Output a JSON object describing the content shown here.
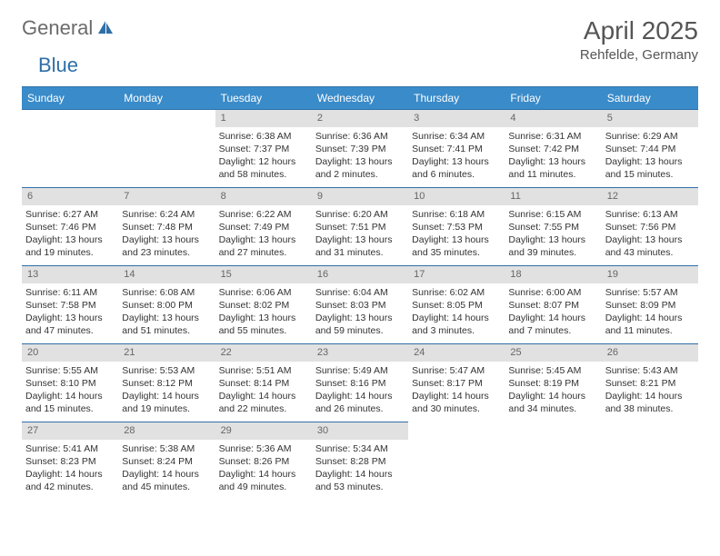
{
  "logo": {
    "text1": "General",
    "text2": "Blue"
  },
  "title": "April 2025",
  "location": "Rehfelde, Germany",
  "colors": {
    "header_bg": "#3a8bc9",
    "header_border": "#2f6fa8",
    "daynum_bg": "#e1e1e1",
    "daynum_color": "#666666",
    "text": "#333333",
    "logo_gray": "#6b6b6b",
    "logo_blue": "#2f6fa8"
  },
  "weekdays": [
    "Sunday",
    "Monday",
    "Tuesday",
    "Wednesday",
    "Thursday",
    "Friday",
    "Saturday"
  ],
  "leading_empty": 2,
  "days": [
    {
      "n": "1",
      "sunrise": "Sunrise: 6:38 AM",
      "sunset": "Sunset: 7:37 PM",
      "daylight": "Daylight: 12 hours and 58 minutes."
    },
    {
      "n": "2",
      "sunrise": "Sunrise: 6:36 AM",
      "sunset": "Sunset: 7:39 PM",
      "daylight": "Daylight: 13 hours and 2 minutes."
    },
    {
      "n": "3",
      "sunrise": "Sunrise: 6:34 AM",
      "sunset": "Sunset: 7:41 PM",
      "daylight": "Daylight: 13 hours and 6 minutes."
    },
    {
      "n": "4",
      "sunrise": "Sunrise: 6:31 AM",
      "sunset": "Sunset: 7:42 PM",
      "daylight": "Daylight: 13 hours and 11 minutes."
    },
    {
      "n": "5",
      "sunrise": "Sunrise: 6:29 AM",
      "sunset": "Sunset: 7:44 PM",
      "daylight": "Daylight: 13 hours and 15 minutes."
    },
    {
      "n": "6",
      "sunrise": "Sunrise: 6:27 AM",
      "sunset": "Sunset: 7:46 PM",
      "daylight": "Daylight: 13 hours and 19 minutes."
    },
    {
      "n": "7",
      "sunrise": "Sunrise: 6:24 AM",
      "sunset": "Sunset: 7:48 PM",
      "daylight": "Daylight: 13 hours and 23 minutes."
    },
    {
      "n": "8",
      "sunrise": "Sunrise: 6:22 AM",
      "sunset": "Sunset: 7:49 PM",
      "daylight": "Daylight: 13 hours and 27 minutes."
    },
    {
      "n": "9",
      "sunrise": "Sunrise: 6:20 AM",
      "sunset": "Sunset: 7:51 PM",
      "daylight": "Daylight: 13 hours and 31 minutes."
    },
    {
      "n": "10",
      "sunrise": "Sunrise: 6:18 AM",
      "sunset": "Sunset: 7:53 PM",
      "daylight": "Daylight: 13 hours and 35 minutes."
    },
    {
      "n": "11",
      "sunrise": "Sunrise: 6:15 AM",
      "sunset": "Sunset: 7:55 PM",
      "daylight": "Daylight: 13 hours and 39 minutes."
    },
    {
      "n": "12",
      "sunrise": "Sunrise: 6:13 AM",
      "sunset": "Sunset: 7:56 PM",
      "daylight": "Daylight: 13 hours and 43 minutes."
    },
    {
      "n": "13",
      "sunrise": "Sunrise: 6:11 AM",
      "sunset": "Sunset: 7:58 PM",
      "daylight": "Daylight: 13 hours and 47 minutes."
    },
    {
      "n": "14",
      "sunrise": "Sunrise: 6:08 AM",
      "sunset": "Sunset: 8:00 PM",
      "daylight": "Daylight: 13 hours and 51 minutes."
    },
    {
      "n": "15",
      "sunrise": "Sunrise: 6:06 AM",
      "sunset": "Sunset: 8:02 PM",
      "daylight": "Daylight: 13 hours and 55 minutes."
    },
    {
      "n": "16",
      "sunrise": "Sunrise: 6:04 AM",
      "sunset": "Sunset: 8:03 PM",
      "daylight": "Daylight: 13 hours and 59 minutes."
    },
    {
      "n": "17",
      "sunrise": "Sunrise: 6:02 AM",
      "sunset": "Sunset: 8:05 PM",
      "daylight": "Daylight: 14 hours and 3 minutes."
    },
    {
      "n": "18",
      "sunrise": "Sunrise: 6:00 AM",
      "sunset": "Sunset: 8:07 PM",
      "daylight": "Daylight: 14 hours and 7 minutes."
    },
    {
      "n": "19",
      "sunrise": "Sunrise: 5:57 AM",
      "sunset": "Sunset: 8:09 PM",
      "daylight": "Daylight: 14 hours and 11 minutes."
    },
    {
      "n": "20",
      "sunrise": "Sunrise: 5:55 AM",
      "sunset": "Sunset: 8:10 PM",
      "daylight": "Daylight: 14 hours and 15 minutes."
    },
    {
      "n": "21",
      "sunrise": "Sunrise: 5:53 AM",
      "sunset": "Sunset: 8:12 PM",
      "daylight": "Daylight: 14 hours and 19 minutes."
    },
    {
      "n": "22",
      "sunrise": "Sunrise: 5:51 AM",
      "sunset": "Sunset: 8:14 PM",
      "daylight": "Daylight: 14 hours and 22 minutes."
    },
    {
      "n": "23",
      "sunrise": "Sunrise: 5:49 AM",
      "sunset": "Sunset: 8:16 PM",
      "daylight": "Daylight: 14 hours and 26 minutes."
    },
    {
      "n": "24",
      "sunrise": "Sunrise: 5:47 AM",
      "sunset": "Sunset: 8:17 PM",
      "daylight": "Daylight: 14 hours and 30 minutes."
    },
    {
      "n": "25",
      "sunrise": "Sunrise: 5:45 AM",
      "sunset": "Sunset: 8:19 PM",
      "daylight": "Daylight: 14 hours and 34 minutes."
    },
    {
      "n": "26",
      "sunrise": "Sunrise: 5:43 AM",
      "sunset": "Sunset: 8:21 PM",
      "daylight": "Daylight: 14 hours and 38 minutes."
    },
    {
      "n": "27",
      "sunrise": "Sunrise: 5:41 AM",
      "sunset": "Sunset: 8:23 PM",
      "daylight": "Daylight: 14 hours and 42 minutes."
    },
    {
      "n": "28",
      "sunrise": "Sunrise: 5:38 AM",
      "sunset": "Sunset: 8:24 PM",
      "daylight": "Daylight: 14 hours and 45 minutes."
    },
    {
      "n": "29",
      "sunrise": "Sunrise: 5:36 AM",
      "sunset": "Sunset: 8:26 PM",
      "daylight": "Daylight: 14 hours and 49 minutes."
    },
    {
      "n": "30",
      "sunrise": "Sunrise: 5:34 AM",
      "sunset": "Sunset: 8:28 PM",
      "daylight": "Daylight: 14 hours and 53 minutes."
    }
  ]
}
